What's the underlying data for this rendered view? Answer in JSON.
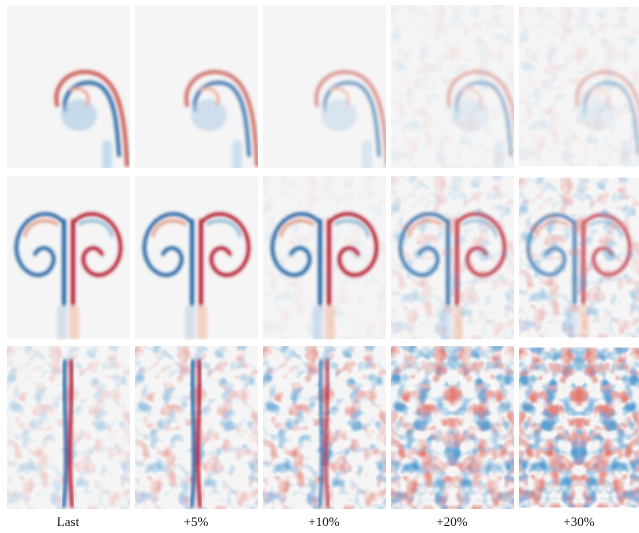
{
  "columns": [
    "Last",
    "+5%",
    "+10%",
    "+20%",
    "+30%"
  ]
}
